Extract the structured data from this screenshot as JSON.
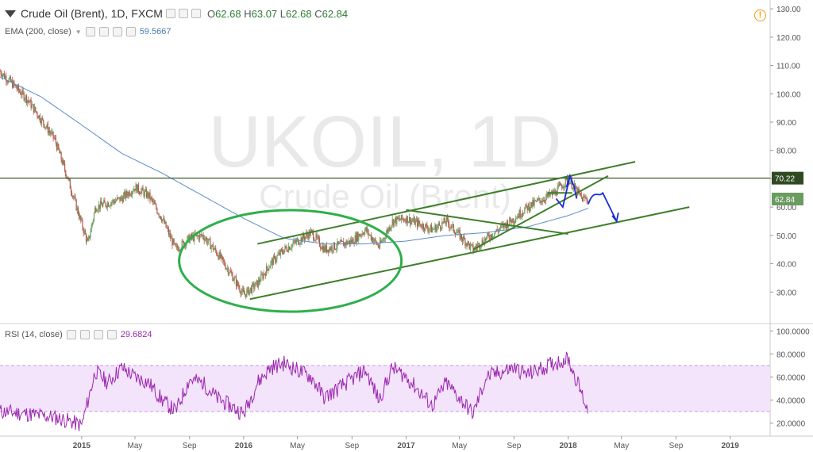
{
  "header": {
    "symbol_title": "Crude Oil (Brent), 1D, FXCM",
    "ohlc": {
      "o_label": "O",
      "o_value": "62.68",
      "h_label": "H",
      "h_value": "63.07",
      "l_label": "L",
      "l_value": "62.68",
      "c_label": "C",
      "c_value": "62.84"
    },
    "ema_label": "EMA (200, close)",
    "ema_value": "59.5667",
    "rsi_label": "RSI (14, close)",
    "rsi_value": "29.6824",
    "alert_glyph": "!"
  },
  "watermark": {
    "line1": "UKOIL, 1D",
    "line2": "Crude Oil (Brent)"
  },
  "colors": {
    "candle_up": "#6b9e5e",
    "candle_down": "#b35c50",
    "ema": "#5b8cc7",
    "trendline": "#3e7f2a",
    "ellipse": "#2eaf4a",
    "hline": "#3a5a2a",
    "rsi": "#9c27b0",
    "rsi_band": "#f3e3fb",
    "annotation": "#1a2cd6"
  },
  "chart_data": [
    {
      "type": "candlestick",
      "title": "Crude Oil (Brent), 1D, FXCM",
      "ylim": [
        20,
        132
      ],
      "yticks": [
        "30.00",
        "40.00",
        "50.00",
        "60.00",
        "70.00",
        "80.00",
        "90.00",
        "100.00",
        "110.00",
        "120.00",
        "130.00"
      ],
      "xticks": [
        "2015",
        "May",
        "Sep",
        "2016",
        "May",
        "Sep",
        "2017",
        "May",
        "Sep",
        "2018",
        "May",
        "Sep",
        "2019"
      ],
      "price_path": [
        {
          "t": "2014-07",
          "v": 108
        },
        {
          "t": "2014-09",
          "v": 98
        },
        {
          "t": "2014-11",
          "v": 84
        },
        {
          "t": "2014-12",
          "v": 70
        },
        {
          "t": "2015-01",
          "v": 54
        },
        {
          "t": "2015-01-15",
          "v": 47
        },
        {
          "t": "2015-02",
          "v": 60
        },
        {
          "t": "2015-04",
          "v": 63
        },
        {
          "t": "2015-05",
          "v": 67
        },
        {
          "t": "2015-06",
          "v": 64
        },
        {
          "t": "2015-07",
          "v": 56
        },
        {
          "t": "2015-08",
          "v": 45
        },
        {
          "t": "2015-09",
          "v": 49
        },
        {
          "t": "2015-10",
          "v": 50
        },
        {
          "t": "2015-11",
          "v": 44
        },
        {
          "t": "2015-12",
          "v": 37
        },
        {
          "t": "2016-01",
          "v": 29
        },
        {
          "t": "2016-02",
          "v": 33
        },
        {
          "t": "2016-03",
          "v": 40
        },
        {
          "t": "2016-04",
          "v": 45
        },
        {
          "t": "2016-06",
          "v": 51
        },
        {
          "t": "2016-07",
          "v": 45
        },
        {
          "t": "2016-09",
          "v": 48
        },
        {
          "t": "2016-10",
          "v": 52
        },
        {
          "t": "2016-11",
          "v": 46
        },
        {
          "t": "2016-12",
          "v": 55
        },
        {
          "t": "2017-01",
          "v": 56
        },
        {
          "t": "2017-03",
          "v": 52
        },
        {
          "t": "2017-04",
          "v": 55
        },
        {
          "t": "2017-06",
          "v": 45
        },
        {
          "t": "2017-07",
          "v": 49
        },
        {
          "t": "2017-09",
          "v": 56
        },
        {
          "t": "2017-10",
          "v": 60
        },
        {
          "t": "2017-12",
          "v": 65
        },
        {
          "t": "2018-01",
          "v": 70
        },
        {
          "t": "2018-02",
          "v": 63
        },
        {
          "t": "2018-02-15",
          "v": 62.84
        }
      ],
      "last_price_label": "62.84",
      "level_label": "70.22",
      "level_value": 70.22,
      "ema_200": [
        {
          "t": "2014-07",
          "v": 106
        },
        {
          "t": "2014-10",
          "v": 99
        },
        {
          "t": "2015-01",
          "v": 89
        },
        {
          "t": "2015-04",
          "v": 79
        },
        {
          "t": "2015-07",
          "v": 72
        },
        {
          "t": "2015-10",
          "v": 64
        },
        {
          "t": "2016-01",
          "v": 56
        },
        {
          "t": "2016-04",
          "v": 49
        },
        {
          "t": "2016-07",
          "v": 47
        },
        {
          "t": "2016-10",
          "v": 47
        },
        {
          "t": "2017-01",
          "v": 48
        },
        {
          "t": "2017-04",
          "v": 50
        },
        {
          "t": "2017-07",
          "v": 51
        },
        {
          "t": "2017-10",
          "v": 53
        },
        {
          "t": "2018-01",
          "v": 57
        },
        {
          "t": "2018-02-15",
          "v": 59.5667
        }
      ]
    },
    {
      "type": "line",
      "title": "RSI (14, close)",
      "ylim": [
        10,
        105
      ],
      "yticks": [
        "20.0000",
        "40.0000",
        "60.0000",
        "80.0000",
        "100.0000"
      ],
      "band": [
        30,
        70
      ],
      "rsi_path": [
        {
          "t": "2014-07",
          "v": 30
        },
        {
          "t": "2014-09",
          "v": 28
        },
        {
          "t": "2014-11",
          "v": 25
        },
        {
          "t": "2014-12",
          "v": 22
        },
        {
          "t": "2015-01",
          "v": 18
        },
        {
          "t": "2015-02",
          "v": 65
        },
        {
          "t": "2015-03",
          "v": 55
        },
        {
          "t": "2015-04",
          "v": 68
        },
        {
          "t": "2015-05",
          "v": 60
        },
        {
          "t": "2015-06",
          "v": 55
        },
        {
          "t": "2015-07",
          "v": 40
        },
        {
          "t": "2015-08",
          "v": 30
        },
        {
          "t": "2015-09",
          "v": 58
        },
        {
          "t": "2015-10",
          "v": 55
        },
        {
          "t": "2015-11",
          "v": 42
        },
        {
          "t": "2015-12",
          "v": 35
        },
        {
          "t": "2016-01",
          "v": 28
        },
        {
          "t": "2016-02",
          "v": 55
        },
        {
          "t": "2016-03",
          "v": 68
        },
        {
          "t": "2016-04",
          "v": 72
        },
        {
          "t": "2016-06",
          "v": 60
        },
        {
          "t": "2016-07",
          "v": 42
        },
        {
          "t": "2016-09",
          "v": 58
        },
        {
          "t": "2016-10",
          "v": 66
        },
        {
          "t": "2016-11",
          "v": 40
        },
        {
          "t": "2016-12",
          "v": 68
        },
        {
          "t": "2017-01",
          "v": 60
        },
        {
          "t": "2017-03",
          "v": 35
        },
        {
          "t": "2017-04",
          "v": 55
        },
        {
          "t": "2017-06",
          "v": 28
        },
        {
          "t": "2017-07",
          "v": 60
        },
        {
          "t": "2017-09",
          "v": 68
        },
        {
          "t": "2017-10",
          "v": 62
        },
        {
          "t": "2017-12",
          "v": 72
        },
        {
          "t": "2018-01",
          "v": 76
        },
        {
          "t": "2018-02",
          "v": 45
        },
        {
          "t": "2018-02-15",
          "v": 29.6824
        }
      ]
    }
  ]
}
